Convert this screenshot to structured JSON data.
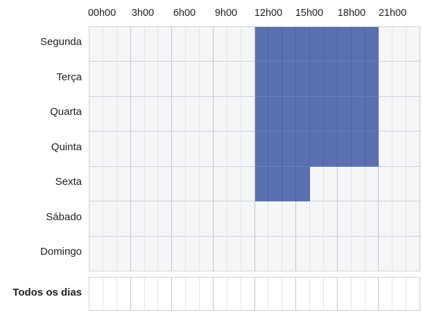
{
  "hour_labels": [
    "00h00",
    "3h00",
    "6h00",
    "9h00",
    "12h00",
    "15h00",
    "18h00",
    "21h00"
  ],
  "days": [
    {
      "label": "Segunda",
      "active_hours": [
        12,
        13,
        14,
        15,
        16,
        17,
        18,
        19,
        20
      ]
    },
    {
      "label": "Terça",
      "active_hours": [
        12,
        13,
        14,
        15,
        16,
        17,
        18,
        19,
        20
      ]
    },
    {
      "label": "Quarta",
      "active_hours": [
        12,
        13,
        14,
        15,
        16,
        17,
        18,
        19,
        20
      ]
    },
    {
      "label": "Quinta",
      "active_hours": [
        12,
        13,
        14,
        15,
        16,
        17,
        18,
        19,
        20
      ]
    },
    {
      "label": "Sexta",
      "active_hours": [
        12,
        13,
        14,
        15
      ]
    },
    {
      "label": "Sábado",
      "active_hours": []
    },
    {
      "label": "Domingo",
      "active_hours": []
    }
  ],
  "all_days": {
    "label": "Todos os dias",
    "active_hours": []
  },
  "colors": {
    "active_cell": "#5b70b1",
    "inactive_cell": "#f5f6f7",
    "grid_line": "#cfd1d5"
  }
}
